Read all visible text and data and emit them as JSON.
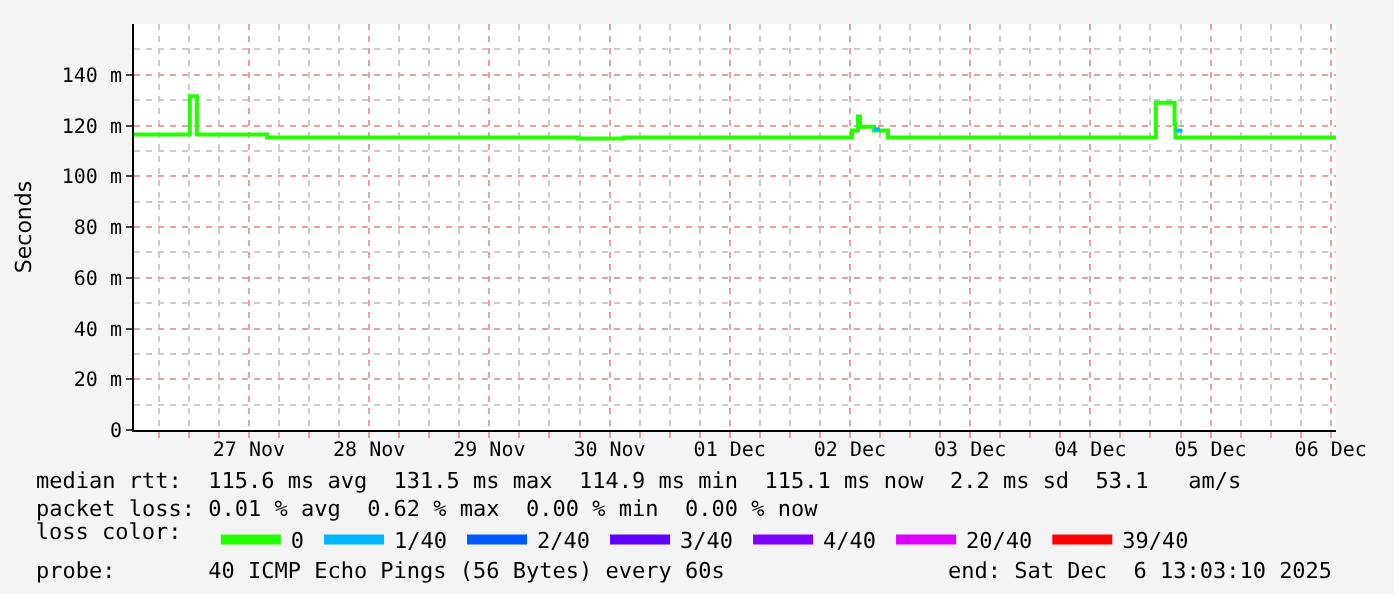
{
  "chart_data": {
    "type": "step",
    "ylabel": "Seconds",
    "legend_title": "loss color:",
    "legend": "bottom",
    "grid": true,
    "marker": "none",
    "line_style": "solid",
    "xlim": [
      "2025-11-26T13:03",
      "2025-12-06T13:03"
    ],
    "xticks": [
      {
        "value": "2025-11-27T12:00",
        "label": "27 Nov"
      },
      {
        "value": "2025-11-28T12:00",
        "label": "28 Nov"
      },
      {
        "value": "2025-11-29T12:00",
        "label": "29 Nov"
      },
      {
        "value": "2025-11-30T12:00",
        "label": "30 Nov"
      },
      {
        "value": "2025-12-01T12:00",
        "label": "01 Dec"
      },
      {
        "value": "2025-12-02T12:00",
        "label": "02 Dec"
      },
      {
        "value": "2025-12-03T12:00",
        "label": "03 Dec"
      },
      {
        "value": "2025-12-04T12:00",
        "label": "04 Dec"
      },
      {
        "value": "2025-12-05T12:00",
        "label": "05 Dec"
      },
      {
        "value": "2025-12-06T12:00",
        "label": "06 Dec"
      }
    ],
    "ylim": [
      0,
      160
    ],
    "yticks": [
      0,
      {
        "value": 20,
        "label": "20 m"
      },
      {
        "value": 40,
        "label": "40 m"
      },
      {
        "value": 60,
        "label": "60 m"
      },
      {
        "value": 80,
        "label": "80 m"
      },
      {
        "value": 100,
        "label": "100 m"
      },
      {
        "value": 120,
        "label": "120 m"
      },
      {
        "value": 140,
        "label": "140 m"
      }
    ],
    "series": [
      {
        "name": "0",
        "color": "#26ff00",
        "x": [
          "2025-11-26T13:03",
          "2025-11-27T00:12",
          "2025-11-27T01:36",
          "2025-11-27T15:36",
          "2025-11-30T05:36",
          "2025-11-30T14:48",
          "2025-12-02T12:24",
          "2025-12-02T13:36",
          "2025-12-02T14:00",
          "2025-12-02T16:48",
          "2025-12-02T19:36",
          "2025-12-05T01:05",
          "2025-12-05T04:48",
          "2025-12-05T05:00",
          "2025-12-06T13:03"
        ],
        "values": [
          116.5,
          131.5,
          116.5,
          115.3,
          114.9,
          115.3,
          118,
          123.5,
          119.5,
          118,
          115.3,
          129,
          120.6,
          115.3,
          115.1
        ]
      },
      {
        "name": "1/40",
        "color": "#00b8ff",
        "x": [
          "2025-12-02T16:48",
          "2025-12-02T18:00",
          "2025-12-03T12:00",
          "2025-12-05T05:00",
          "2025-12-05T06:24"
        ],
        "values": [
          118.5,
          118.5,
          null,
          118,
          118
        ]
      },
      {
        "name": "2/40",
        "color": "#0059ff"
      },
      {
        "name": "3/40",
        "color": "#5e00ff"
      },
      {
        "name": "4/40",
        "color": "#7e00ff"
      },
      {
        "name": "20/40",
        "color": "#dd00ff"
      },
      {
        "name": "39/40",
        "color": "#ff0000"
      }
    ],
    "annotations": [
      "median rtt:  115.6 ms avg  131.5 ms max  114.9 ms min  115.1 ms now  2.2 ms sd  53.1   am/s",
      "packet loss: 0.01 % avg  0.62 % max  0.00 % min  0.00 % now",
      "probe:       40 ICMP Echo Pings (56 Bytes) every 60s",
      "end: Sat Dec  6 13:03:10 2025"
    ]
  }
}
